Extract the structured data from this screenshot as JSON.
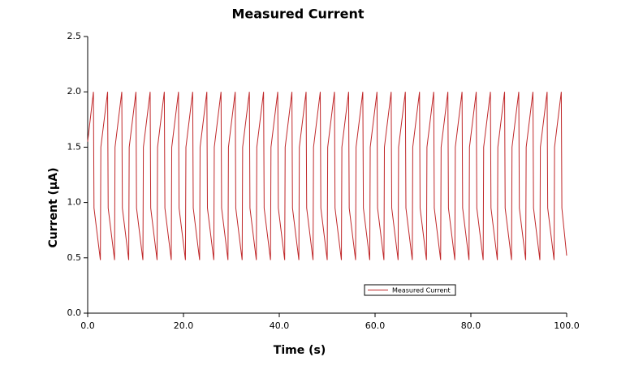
{
  "chart_data": {
    "type": "line",
    "title": "Measured Current",
    "x_label": "Time (s)",
    "y_label": "Current (µA)",
    "xlim": [
      0,
      100
    ],
    "ylim": [
      0,
      2.5
    ],
    "xticks": [
      {
        "value": 0,
        "label": "0.0"
      },
      {
        "value": 20,
        "label": "20.0"
      },
      {
        "value": 40,
        "label": "40.0"
      },
      {
        "value": 60,
        "label": "60.0"
      },
      {
        "value": 80,
        "label": "80.0"
      },
      {
        "value": 100,
        "label": "100.0"
      }
    ],
    "yticks": [
      {
        "value": 0,
        "label": "0.0"
      },
      0.5,
      {
        "value": 1,
        "label": "1.0"
      },
      1.5,
      {
        "value": 2,
        "label": "2.0"
      },
      2.5
    ],
    "grid": false,
    "legend": "lower right",
    "x": [
      0,
      1.2,
      1.32,
      2.65,
      2.75,
      4.16,
      4.28,
      5.61,
      5.71,
      7.12,
      7.24,
      8.57,
      8.67,
      10.08,
      10.2,
      11.53,
      11.63,
      13.04,
      13.16,
      14.49,
      14.59,
      16,
      16.12,
      17.45,
      17.55,
      18.96,
      19.08,
      20.41,
      20.51,
      21.92,
      22.04,
      23.37,
      23.47,
      24.88,
      25,
      26.33,
      26.43,
      27.84,
      27.96,
      29.29,
      29.39,
      30.8,
      30.92,
      32.25,
      32.35,
      33.76,
      33.88,
      35.21,
      35.31,
      36.72,
      36.84,
      38.17,
      38.27,
      39.68,
      39.8,
      41.13,
      41.23,
      42.64,
      42.76,
      44.09,
      44.19,
      45.6,
      45.72,
      47.05,
      47.15,
      48.56,
      48.68,
      50.01,
      50.11,
      51.52,
      51.64,
      52.97,
      53.07,
      54.48,
      54.6,
      55.93,
      56.03,
      57.44,
      57.56,
      58.89,
      58.99,
      60.4,
      60.52,
      61.85,
      61.95,
      63.36,
      63.48,
      64.81,
      64.91,
      66.32,
      66.44,
      67.77,
      67.87,
      69.28,
      69.4,
      70.73,
      70.83,
      72.24,
      72.36,
      73.69,
      73.79,
      75.2,
      75.32,
      76.65,
      76.75,
      78.16,
      78.28,
      79.61,
      79.71,
      81.12,
      81.24,
      82.57,
      82.67,
      84.08,
      84.2,
      85.53,
      85.63,
      87.04,
      87.16,
      88.49,
      88.59,
      90,
      90.12,
      91.45,
      91.55,
      92.96,
      93.08,
      94.41,
      94.51,
      95.92,
      96.04,
      97.37,
      97.47,
      98.88,
      99,
      100
    ],
    "series": [
      {
        "name": "Measured Current",
        "color": "#c0282a",
        "values": [
          1.55,
          2,
          0.95,
          0.48,
          1.5,
          2,
          0.95,
          0.48,
          1.5,
          2,
          0.95,
          0.48,
          1.5,
          2,
          0.95,
          0.48,
          1.5,
          2,
          0.95,
          0.48,
          1.5,
          2,
          0.95,
          0.48,
          1.5,
          2,
          0.95,
          0.48,
          1.5,
          2,
          0.95,
          0.48,
          1.5,
          2,
          0.95,
          0.48,
          1.5,
          2,
          0.95,
          0.48,
          1.5,
          2,
          0.95,
          0.48,
          1.5,
          2,
          0.95,
          0.48,
          1.5,
          2,
          0.95,
          0.48,
          1.5,
          2,
          0.95,
          0.48,
          1.5,
          2,
          0.95,
          0.48,
          1.5,
          2,
          0.95,
          0.48,
          1.5,
          2,
          0.95,
          0.48,
          1.5,
          2,
          0.95,
          0.48,
          1.5,
          2,
          0.95,
          0.48,
          1.5,
          2,
          0.95,
          0.48,
          1.5,
          2,
          0.95,
          0.48,
          1.5,
          2,
          0.95,
          0.48,
          1.5,
          2,
          0.95,
          0.48,
          1.5,
          2,
          0.95,
          0.48,
          1.5,
          2,
          0.95,
          0.48,
          1.5,
          2,
          0.95,
          0.48,
          1.5,
          2,
          0.95,
          0.48,
          1.5,
          2,
          0.95,
          0.48,
          1.5,
          2,
          0.95,
          0.48,
          1.5,
          2,
          0.95,
          0.48,
          1.5,
          2,
          0.95,
          0.48,
          1.5,
          2,
          0.95,
          0.48,
          1.5,
          2,
          0.95,
          0.48,
          1.5,
          2,
          0.95,
          0.52
        ]
      }
    ]
  }
}
